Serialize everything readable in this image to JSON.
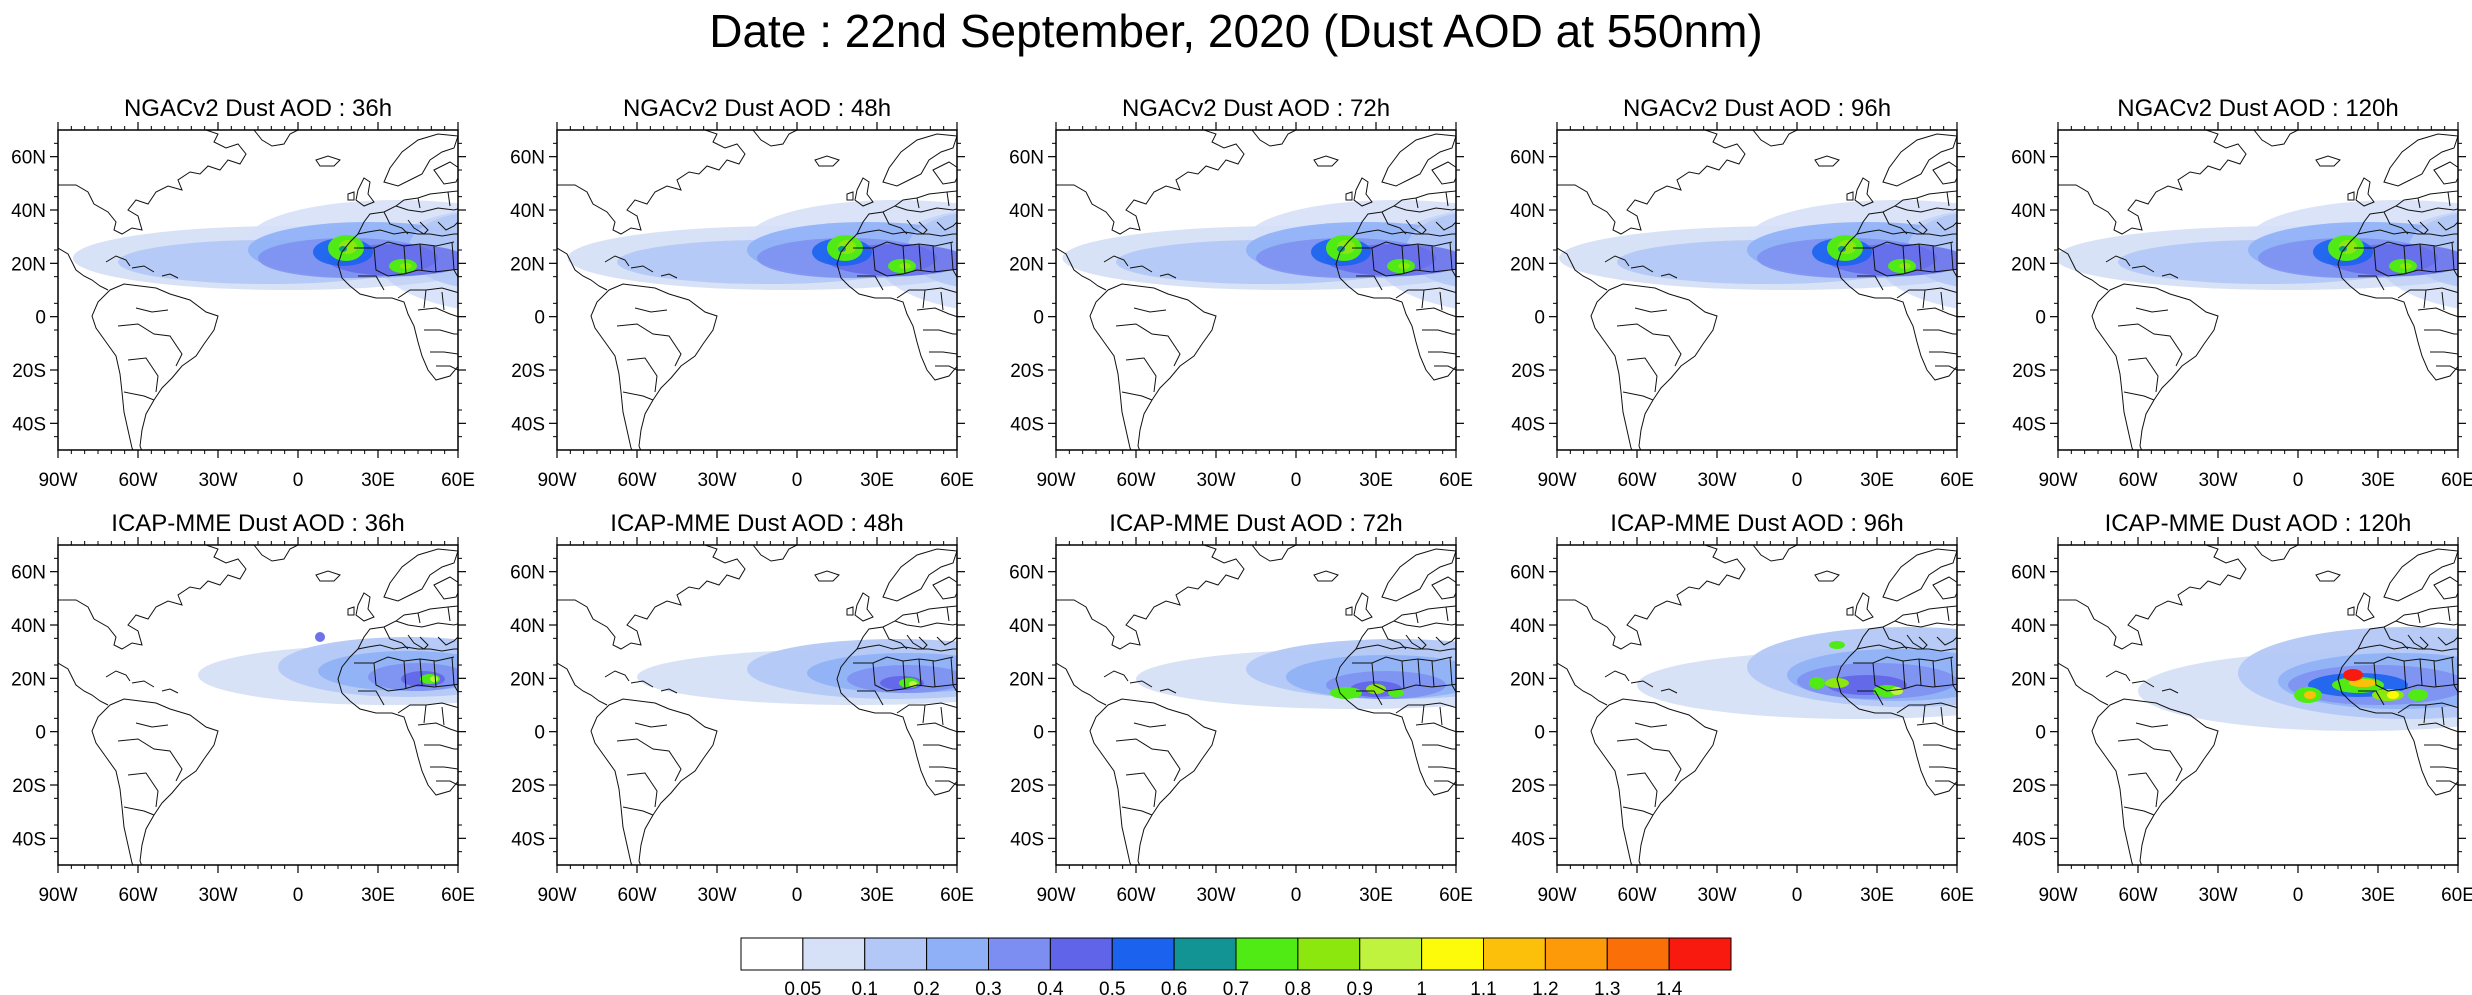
{
  "title": "Date : 22nd September, 2020 (Dust AOD at 550nm)",
  "panels": [
    {
      "label": "NGACv2 Dust AOD : 36h"
    },
    {
      "label": "NGACv2 Dust AOD : 48h"
    },
    {
      "label": "NGACv2 Dust AOD : 72h"
    },
    {
      "label": "NGACv2 Dust AOD : 96h"
    },
    {
      "label": "NGACv2 Dust AOD : 120h"
    },
    {
      "label": "ICAP-MME Dust AOD : 36h"
    },
    {
      "label": "ICAP-MME Dust AOD : 48h"
    },
    {
      "label": "ICAP-MME Dust AOD : 72h"
    },
    {
      "label": "ICAP-MME Dust AOD : 96h"
    },
    {
      "label": "ICAP-MME Dust AOD : 120h"
    }
  ],
  "axes": {
    "lat_labels": [
      "60N",
      "40N",
      "20N",
      "0",
      "20S",
      "40S"
    ],
    "lon_labels": [
      "90W",
      "60W",
      "30W",
      "0",
      "30E",
      "60E"
    ]
  },
  "colorbar": {
    "labels": [
      "0.05",
      "0.1",
      "0.2",
      "0.3",
      "0.4",
      "0.5",
      "0.6",
      "0.7",
      "0.8",
      "0.9",
      "1",
      "1.1",
      "1.2",
      "1.3",
      "1.4"
    ],
    "colors": [
      "#ffffff",
      "#d6e0f7",
      "#b3c8f6",
      "#8fb0f7",
      "#7c8ef1",
      "#5f64e8",
      "#1b63ef",
      "#139494",
      "#50ea14",
      "#8be70d",
      "#c0f33e",
      "#fdfa0a",
      "#fdc00a",
      "#fd9a0a",
      "#fb6f08",
      "#f81a0f"
    ]
  }
}
